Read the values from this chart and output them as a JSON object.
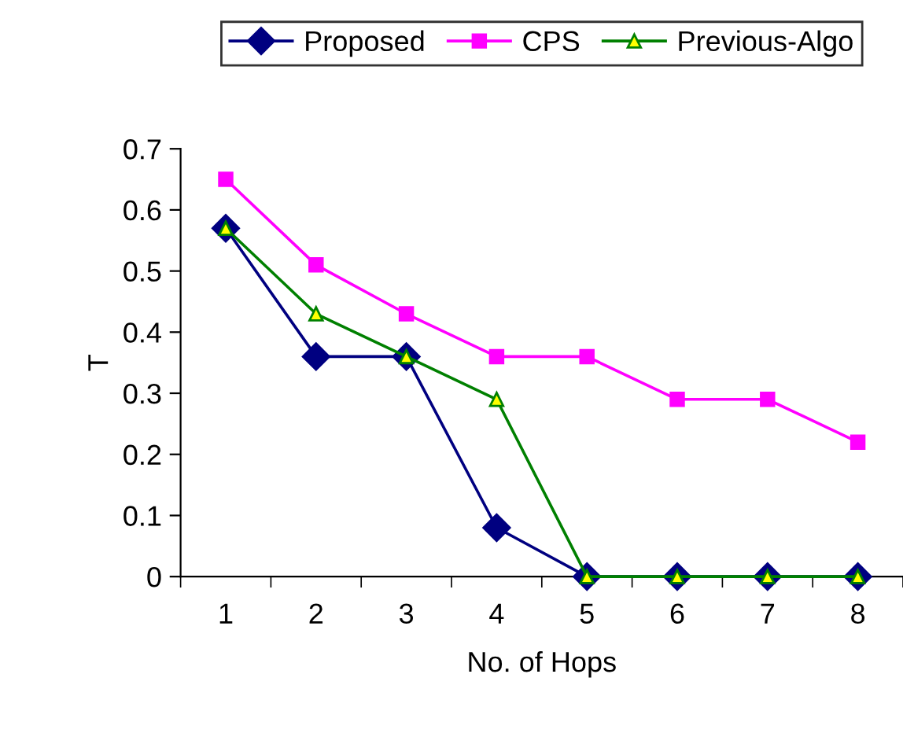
{
  "chart_data": {
    "type": "line",
    "xlabel": "No. of Hops",
    "ylabel": "T",
    "categories": [
      "1",
      "2",
      "3",
      "4",
      "5",
      "6",
      "7",
      "8"
    ],
    "series": [
      {
        "name": "Proposed",
        "color": "#000080",
        "marker": "diamond",
        "values": [
          0.57,
          0.36,
          0.36,
          0.08,
          0,
          0,
          0,
          0
        ]
      },
      {
        "name": "CPS",
        "color": "#ff00ff",
        "marker": "square",
        "values": [
          0.65,
          0.51,
          0.43,
          0.36,
          0.36,
          0.29,
          0.29,
          0.22
        ]
      },
      {
        "name": "Previous-Algo",
        "color": "#008000",
        "marker": "triangle",
        "values": [
          0.57,
          0.43,
          0.36,
          0.29,
          0,
          0,
          0,
          0
        ]
      }
    ],
    "ylim": [
      0,
      0.7
    ],
    "yticks": [
      {
        "value": 0,
        "label": "0"
      },
      0.1,
      0.2,
      0.3,
      0.4,
      0.5,
      0.6,
      0.7
    ],
    "grid": false,
    "legend": "top",
    "line_style": "solid"
  }
}
